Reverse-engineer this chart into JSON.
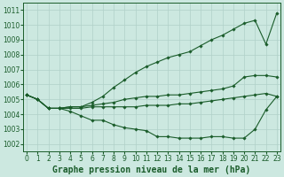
{
  "title": "Graphe pression niveau de la mer (hPa)",
  "hours": [
    0,
    1,
    2,
    3,
    4,
    5,
    6,
    7,
    8,
    9,
    10,
    11,
    12,
    13,
    14,
    15,
    16,
    17,
    18,
    19,
    20,
    21,
    22,
    23
  ],
  "ylim": [
    1001.5,
    1011.5
  ],
  "yticks": [
    1002,
    1003,
    1004,
    1005,
    1006,
    1007,
    1008,
    1009,
    1010,
    1011
  ],
  "xlim": [
    -0.3,
    23.3
  ],
  "background_color": "#cce8e0",
  "grid_color": "#b0d0c8",
  "line_color": "#1a5c2a",
  "line1_steep": [
    1005.3,
    1005.0,
    1004.4,
    1004.4,
    1004.5,
    1004.5,
    1004.8,
    1005.2,
    1005.8,
    1006.3,
    1006.8,
    1007.2,
    1007.5,
    1007.8,
    1008.0,
    1008.2,
    1008.6,
    1009.0,
    1009.3,
    1009.7,
    1010.1,
    1010.3,
    1008.7,
    1010.8
  ],
  "line2_mid": [
    1005.3,
    1005.0,
    1004.4,
    1004.4,
    1004.5,
    1004.5,
    1004.6,
    1004.7,
    1004.8,
    1005.0,
    1005.1,
    1005.2,
    1005.2,
    1005.3,
    1005.3,
    1005.4,
    1005.5,
    1005.6,
    1005.7,
    1005.9,
    1006.5,
    1006.6,
    1006.6,
    1006.5
  ],
  "line3_flat": [
    1005.3,
    1005.0,
    1004.4,
    1004.4,
    1004.4,
    1004.4,
    1004.5,
    1004.5,
    1004.5,
    1004.5,
    1004.5,
    1004.6,
    1004.6,
    1004.6,
    1004.7,
    1004.7,
    1004.8,
    1004.9,
    1005.0,
    1005.1,
    1005.2,
    1005.3,
    1005.4,
    1005.2
  ],
  "line4_dip": [
    1005.3,
    1005.0,
    1004.4,
    1004.4,
    1004.2,
    1003.9,
    1003.6,
    1003.6,
    1003.3,
    1003.1,
    1003.0,
    1002.9,
    1002.5,
    1002.5,
    1002.4,
    1002.4,
    1002.4,
    1002.5,
    1002.5,
    1002.4,
    1002.4,
    1003.0,
    1004.3,
    1005.2
  ],
  "figsize": [
    3.2,
    2.0
  ],
  "dpi": 100,
  "tick_fontsize": 5.5,
  "title_fontsize": 7.0,
  "lw": 0.8,
  "marker": "D",
  "marker_size": 1.8
}
